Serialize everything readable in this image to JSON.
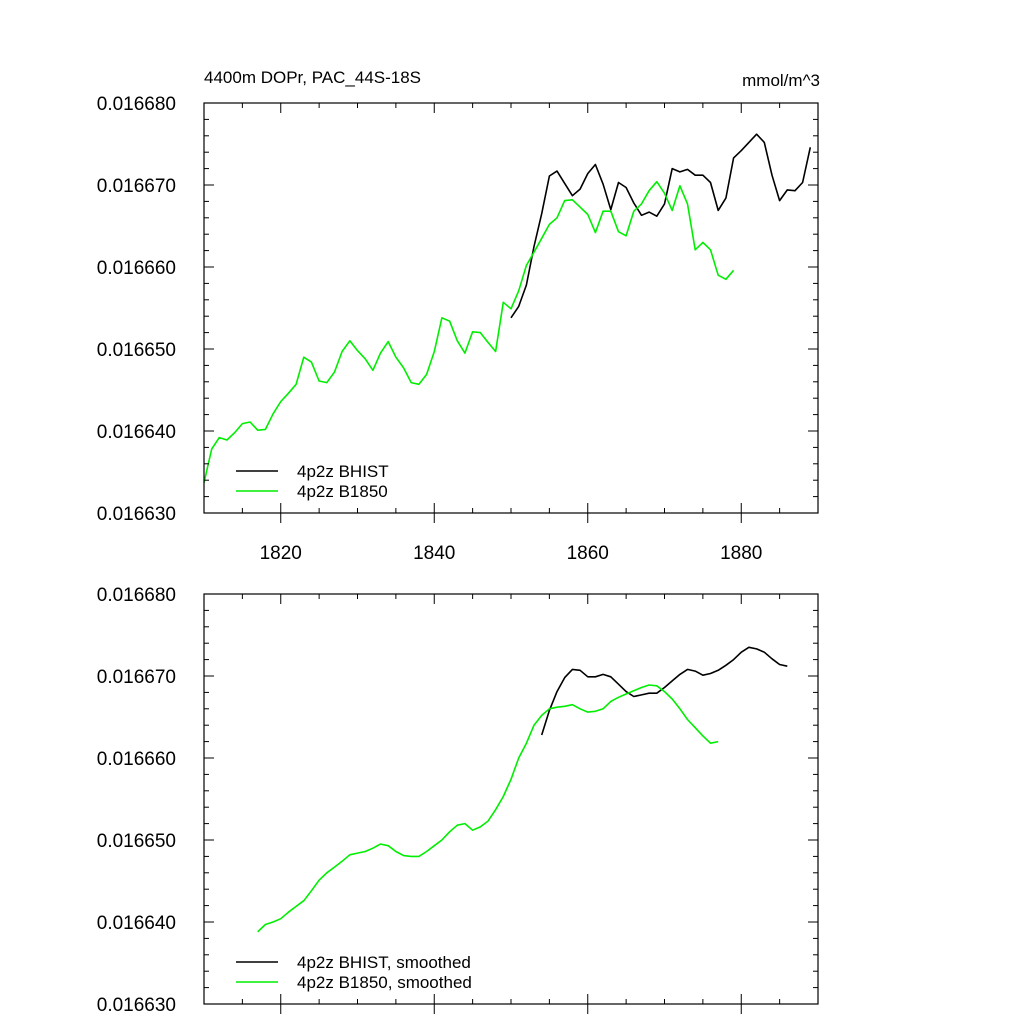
{
  "colors": {
    "bhist": "#000000",
    "b1850": "#00ee00",
    "axis": "#000000",
    "background": "#ffffff"
  },
  "chart_data": [
    {
      "type": "line",
      "title": "4400m DOPr, PAC_44S-18S",
      "units": "mmol/m^3",
      "xlim": [
        1810,
        1890
      ],
      "ylim": [
        0.01663,
        0.01668
      ],
      "xticks": [
        1820,
        1840,
        1860,
        1880
      ],
      "xtick_labels": [
        "1820",
        "1840",
        "1860",
        "1880"
      ],
      "yticks": [
        0.01663,
        0.01664,
        0.01665,
        0.01666,
        0.01667,
        0.01668
      ],
      "ytick_labels": [
        "0.016630",
        "0.016640",
        "0.016650",
        "0.016660",
        "0.016670",
        "0.016680"
      ],
      "grid": false,
      "legend_position": "bottom-left",
      "series": [
        {
          "name": "4p2z BHIST",
          "color": "#000000",
          "x": [
            1850,
            1851,
            1852,
            1853,
            1854,
            1855,
            1856,
            1857,
            1858,
            1859,
            1860,
            1861,
            1862,
            1863,
            1864,
            1865,
            1866,
            1867,
            1868,
            1869,
            1870,
            1871,
            1872,
            1873,
            1874,
            1875,
            1876,
            1877,
            1878,
            1879,
            1880,
            1881,
            1882,
            1883,
            1884,
            1885,
            1886,
            1887,
            1888,
            1889
          ],
          "y": [
            0.0166538,
            0.0166552,
            0.0166578,
            0.0166625,
            0.0166665,
            0.0166711,
            0.0166717,
            0.0166702,
            0.0166687,
            0.0166695,
            0.0166714,
            0.0166725,
            0.0166701,
            0.016667,
            0.0166703,
            0.0166697,
            0.0166678,
            0.0166663,
            0.0166667,
            0.0166662,
            0.0166677,
            0.016672,
            0.0166716,
            0.0166719,
            0.0166712,
            0.0166712,
            0.0166703,
            0.0166669,
            0.0166684,
            0.0166733,
            0.0166742,
            0.0166752,
            0.0166762,
            0.0166752,
            0.0166712,
            0.0166681,
            0.0166694,
            0.0166693,
            0.0166703,
            0.0166746
          ]
        },
        {
          "name": "4p2z B1850",
          "color": "#00ee00",
          "x": [
            1810,
            1811,
            1812,
            1813,
            1814,
            1815,
            1816,
            1817,
            1818,
            1819,
            1820,
            1821,
            1822,
            1823,
            1824,
            1825,
            1826,
            1827,
            1828,
            1829,
            1830,
            1831,
            1832,
            1833,
            1834,
            1835,
            1836,
            1837,
            1838,
            1839,
            1840,
            1841,
            1842,
            1843,
            1844,
            1845,
            1846,
            1847,
            1848,
            1849,
            1850,
            1851,
            1852,
            1853,
            1854,
            1855,
            1856,
            1857,
            1858,
            1859,
            1860,
            1861,
            1862,
            1863,
            1864,
            1865,
            1866,
            1867,
            1868,
            1869,
            1870,
            1871,
            1872,
            1873,
            1874,
            1875,
            1876,
            1877,
            1878,
            1879
          ],
          "y": [
            0.0166337,
            0.0166378,
            0.0166392,
            0.0166389,
            0.0166398,
            0.0166409,
            0.0166411,
            0.0166401,
            0.0166402,
            0.0166421,
            0.0166436,
            0.0166446,
            0.0166457,
            0.016649,
            0.0166484,
            0.0166461,
            0.0166459,
            0.0166472,
            0.0166497,
            0.016651,
            0.0166498,
            0.0166488,
            0.0166474,
            0.0166495,
            0.0166509,
            0.016649,
            0.0166477,
            0.0166459,
            0.0166457,
            0.0166469,
            0.0166497,
            0.0166538,
            0.0166534,
            0.016651,
            0.0166495,
            0.0166521,
            0.016652,
            0.0166508,
            0.0166497,
            0.0166557,
            0.0166549,
            0.0166571,
            0.0166602,
            0.0166618,
            0.0166635,
            0.0166652,
            0.016666,
            0.0166681,
            0.0166682,
            0.0166673,
            0.0166664,
            0.0166642,
            0.0166668,
            0.0166668,
            0.0166643,
            0.0166638,
            0.0166668,
            0.0166677,
            0.0166693,
            0.0166704,
            0.016669,
            0.0166669,
            0.0166699,
            0.0166677,
            0.0166621,
            0.016663,
            0.0166621,
            0.016659,
            0.0166585,
            0.0166596
          ]
        }
      ]
    },
    {
      "type": "line",
      "title": "",
      "xlim": [
        1810,
        1890
      ],
      "ylim": [
        0.01663,
        0.01668
      ],
      "xticks": [
        1820,
        1840,
        1860,
        1880
      ],
      "yticks": [
        0.01663,
        0.01664,
        0.01665,
        0.01666,
        0.01667,
        0.01668
      ],
      "ytick_labels": [
        "0.016630",
        "0.016640",
        "0.016650",
        "0.016660",
        "0.016670",
        "0.016680"
      ],
      "grid": false,
      "legend_position": "bottom-left",
      "series": [
        {
          "name": "4p2z BHIST, smoothed",
          "color": "#000000",
          "x": [
            1854,
            1855,
            1856,
            1857,
            1858,
            1859,
            1860,
            1861,
            1862,
            1863,
            1864,
            1865,
            1866,
            1867,
            1868,
            1869,
            1870,
            1871,
            1872,
            1873,
            1874,
            1875,
            1876,
            1877,
            1878,
            1879,
            1880,
            1881,
            1882,
            1883,
            1884,
            1885,
            1886
          ],
          "y": [
            0.0166628,
            0.0166658,
            0.0166681,
            0.0166698,
            0.0166708,
            0.0166707,
            0.0166699,
            0.0166699,
            0.0166702,
            0.0166699,
            0.016669,
            0.0166681,
            0.0166675,
            0.0166677,
            0.0166679,
            0.0166679,
            0.0166686,
            0.0166694,
            0.0166702,
            0.0166708,
            0.0166706,
            0.0166701,
            0.0166703,
            0.0166707,
            0.0166713,
            0.016672,
            0.0166729,
            0.0166735,
            0.0166733,
            0.0166729,
            0.0166721,
            0.0166714,
            0.0166712
          ]
        },
        {
          "name": "4p2z B1850, smoothed",
          "color": "#00ee00",
          "x": [
            1817,
            1818,
            1819,
            1820,
            1821,
            1822,
            1823,
            1824,
            1825,
            1826,
            1827,
            1828,
            1829,
            1830,
            1831,
            1832,
            1833,
            1834,
            1835,
            1836,
            1837,
            1838,
            1839,
            1840,
            1841,
            1842,
            1843,
            1844,
            1845,
            1846,
            1847,
            1848,
            1849,
            1850,
            1851,
            1852,
            1853,
            1854,
            1855,
            1856,
            1857,
            1858,
            1859,
            1860,
            1861,
            1862,
            1863,
            1864,
            1865,
            1866,
            1867,
            1868,
            1869,
            1870,
            1871,
            1872,
            1873,
            1874,
            1875,
            1876,
            1877
          ],
          "y": [
            0.0166388,
            0.0166397,
            0.01664,
            0.0166404,
            0.0166412,
            0.0166419,
            0.0166426,
            0.0166438,
            0.0166451,
            0.016646,
            0.0166467,
            0.0166474,
            0.0166482,
            0.0166484,
            0.0166486,
            0.016649,
            0.0166495,
            0.0166493,
            0.0166486,
            0.0166481,
            0.016648,
            0.016648,
            0.0166486,
            0.0166493,
            0.01665,
            0.016651,
            0.0166518,
            0.016652,
            0.0166512,
            0.0166516,
            0.0166523,
            0.0166537,
            0.0166553,
            0.0166574,
            0.01666,
            0.0166618,
            0.016664,
            0.0166652,
            0.016666,
            0.0166662,
            0.0166663,
            0.0166665,
            0.016666,
            0.0166656,
            0.0166657,
            0.016666,
            0.0166669,
            0.0166674,
            0.0166678,
            0.0166682,
            0.0166686,
            0.0166689,
            0.0166688,
            0.0166681,
            0.0166672,
            0.016666,
            0.0166647,
            0.0166637,
            0.0166627,
            0.0166618,
            0.016662
          ]
        }
      ]
    }
  ]
}
